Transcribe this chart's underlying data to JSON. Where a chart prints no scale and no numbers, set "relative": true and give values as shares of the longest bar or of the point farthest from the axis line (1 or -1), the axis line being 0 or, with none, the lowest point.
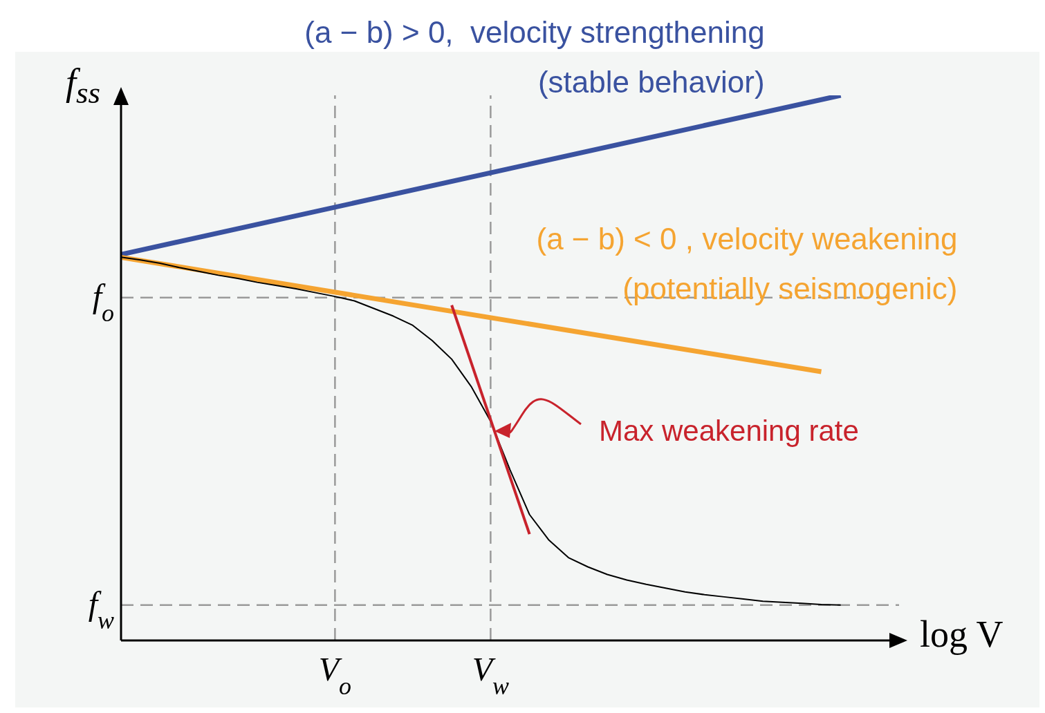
{
  "chart_data": {
    "type": "line",
    "relative": true,
    "xlabel": "log V",
    "ylabel": "f$_{ss}$",
    "marker": "none",
    "categories": [
      null,
      null,
      null,
      null,
      null,
      null,
      null,
      null,
      null,
      null,
      null,
      "V$_{o}$",
      null,
      null,
      null,
      null,
      null,
      null,
      null,
      "V$_{w}$",
      null,
      null,
      null,
      null,
      null,
      null,
      null,
      null,
      null,
      null,
      null,
      null,
      null,
      null,
      null,
      null,
      null,
      null,
      null,
      null,
      null
    ],
    "series": [
      {
        "name": "(a − b) > 0,  velocity strengthening\n(stable behavior)",
        "color": "#3a52a0",
        "values": [
          0.708,
          null,
          null,
          null,
          null,
          null,
          null,
          null,
          null,
          null,
          null,
          null,
          null,
          null,
          null,
          null,
          null,
          null,
          null,
          null,
          null,
          null,
          null,
          null,
          null,
          null,
          null,
          null,
          null,
          null,
          null,
          null,
          null,
          null,
          null,
          null,
          null,
          1.0,
          null,
          null,
          null
        ]
      },
      {
        "name": "(a − b) < 0 , velocity weakening\n(potentially seismogenic)",
        "color": "#f5a431",
        "values": [
          0.703,
          null,
          null,
          null,
          null,
          null,
          null,
          null,
          null,
          null,
          null,
          null,
          null,
          null,
          null,
          null,
          null,
          null,
          null,
          null,
          null,
          null,
          null,
          null,
          null,
          null,
          null,
          null,
          null,
          null,
          null,
          null,
          null,
          null,
          null,
          null,
          0.493,
          null,
          null,
          null,
          null
        ]
      },
      {
        "color": "#000000",
        "values": [
          0.703,
          0.698,
          0.692,
          0.684,
          0.677,
          0.67,
          0.664,
          0.657,
          0.651,
          0.645,
          0.638,
          0.631,
          0.623,
          0.609,
          0.595,
          0.578,
          0.55,
          0.516,
          0.466,
          0.402,
          0.313,
          0.231,
          0.184,
          0.152,
          0.135,
          0.121,
          0.111,
          0.103,
          0.096,
          0.089,
          0.084,
          0.08,
          0.076,
          0.072,
          0.07,
          0.068,
          0.066,
          0.065,
          null,
          null,
          null
        ]
      },
      {
        "color": "#c8232c",
        "values": [
          null,
          null,
          null,
          null,
          null,
          null,
          null,
          null,
          null,
          null,
          null,
          null,
          null,
          null,
          null,
          null,
          null,
          0.615,
          null,
          null,
          null,
          0.195,
          null,
          null,
          null,
          null,
          null,
          null,
          null,
          null,
          null,
          null,
          null,
          null,
          null,
          null,
          null,
          null,
          null,
          null,
          null
        ]
      }
    ],
    "ref_lines": [
      {
        "axis": "y",
        "value": 0.629,
        "label": "f$_{o}$",
        "color": "#9a9a9a",
        "line_style": "dashed"
      },
      {
        "axis": "y",
        "value": 0.065,
        "label": "f$_{w}$",
        "color": "#9a9a9a",
        "line_style": "dashed"
      },
      {
        "axis": "x",
        "value": "V$_{o}$",
        "color": "#9a9a9a",
        "line_style": "dashed"
      },
      {
        "axis": "x",
        "value": "V$_{w}$",
        "color": "#9a9a9a",
        "line_style": "dashed"
      }
    ],
    "annotations": [
      "Max weakening rate"
    ]
  }
}
